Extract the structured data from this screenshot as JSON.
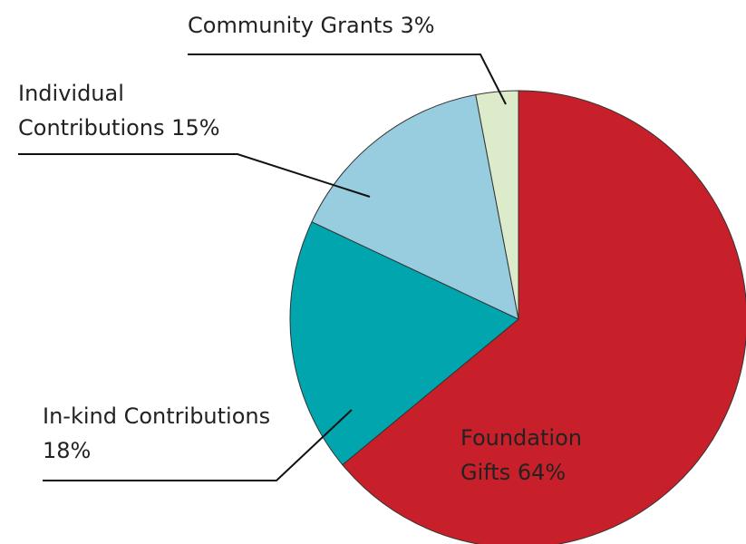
{
  "chart_data": {
    "type": "pie",
    "categories": [
      "Foundation Gifts",
      "In-kind Contributions",
      "Individual Contributions",
      "Community Grants"
    ],
    "values": [
      64,
      18,
      15,
      3
    ],
    "value_labels": [
      "64%",
      "18%",
      "15%",
      "3%"
    ],
    "colors": [
      "#c8202a",
      "#00a5ad",
      "#97cddf",
      "#dcebc9"
    ]
  }
}
